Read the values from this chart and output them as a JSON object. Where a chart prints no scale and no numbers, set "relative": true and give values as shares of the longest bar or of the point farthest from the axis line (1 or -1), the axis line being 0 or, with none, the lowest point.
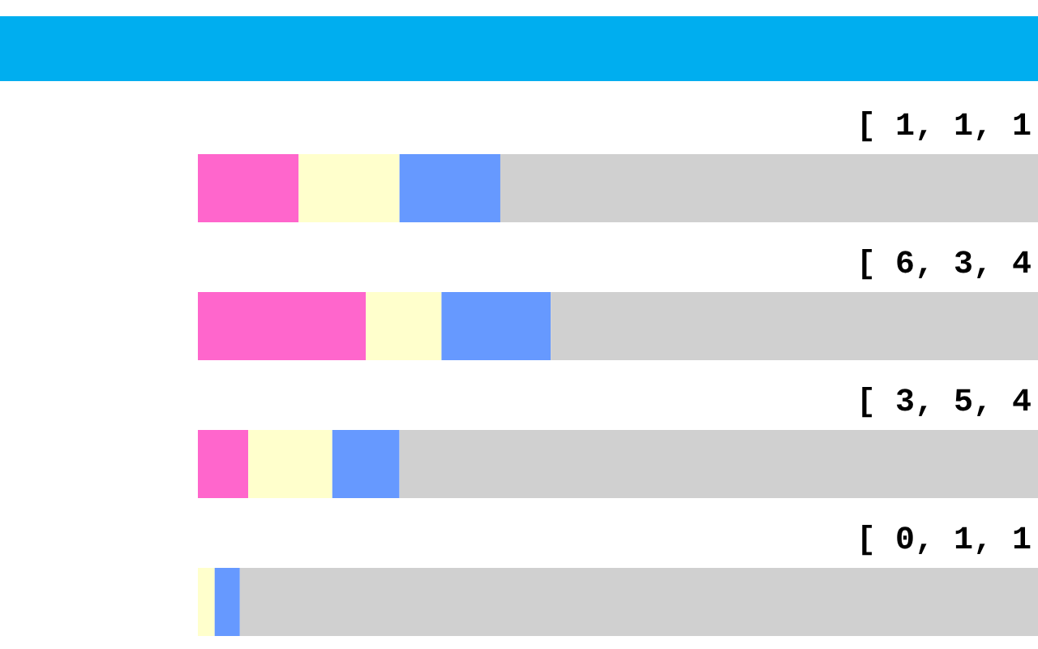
{
  "chart_data": {
    "type": "bar",
    "orientation": "horizontal",
    "stacked": true,
    "relative": true,
    "categories": [
      null,
      null,
      null,
      null
    ],
    "series": [
      {
        "color": "#ff66cc",
        "values": [
          0.12,
          0.2,
          0.06,
          0
        ]
      },
      {
        "color": "#ffffcc",
        "values": [
          0.12,
          0.09,
          0.1,
          0.02
        ]
      },
      {
        "color": "#6699ff",
        "values": [
          0.12,
          0.13,
          0.08,
          0.03
        ]
      },
      {
        "color": "#d0d0d0",
        "values": [
          0.64,
          0.58,
          0.76,
          0.95
        ]
      }
    ],
    "annotations": [
      "[ 1, 1, 1",
      "[ 6, 3, 4",
      "[ 3, 5, 4",
      "[ 0, 1, 1"
    ]
  }
}
